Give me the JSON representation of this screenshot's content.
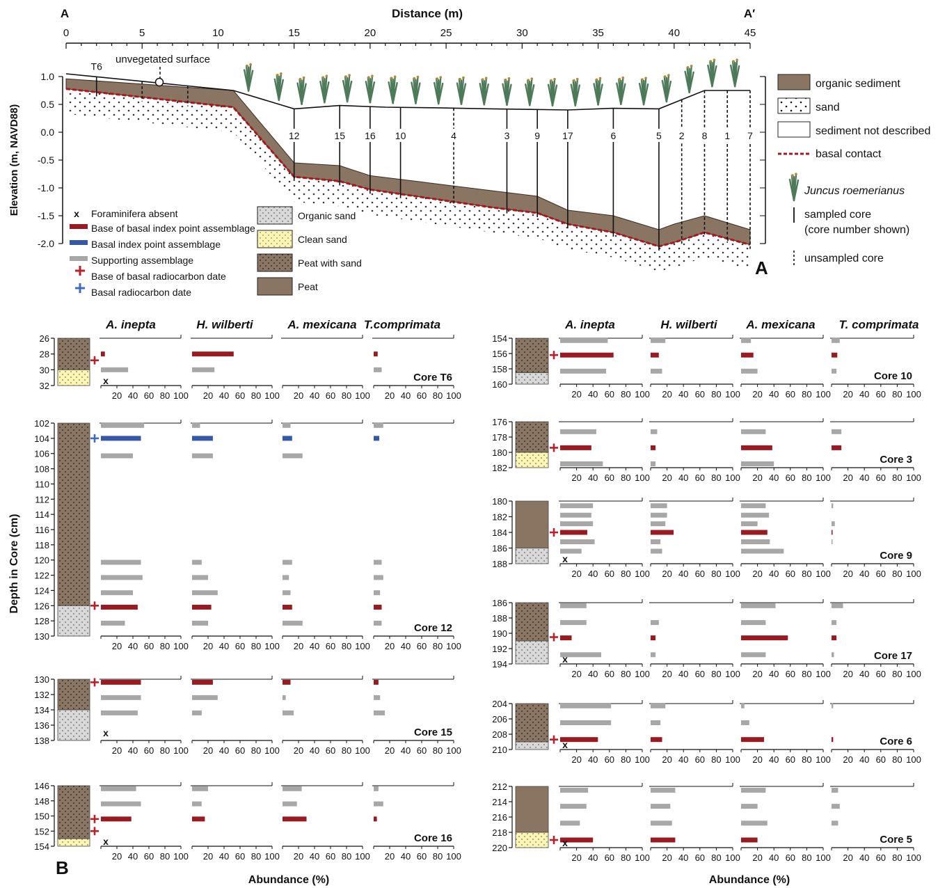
{
  "colors": {
    "peat": "#8a7563",
    "organic_sand": "#d8d8d8",
    "clean_sand": "#fbf5b4",
    "basal_red": "#9b1a22",
    "basal_blue": "#3558a8",
    "support_gray": "#a7a7a7",
    "plus_red": "#b8202a",
    "plus_blue": "#3f6cc0",
    "juncus": "#4d7a58"
  },
  "icons": [
    "juncus-plant-icon",
    "red-plus-icon",
    "blue-plus-icon",
    "x-mark-icon",
    "open-circle-icon"
  ],
  "panel_a": {
    "letter": "A",
    "end_left": "A",
    "end_right": "A′",
    "x_title": "Distance (m)",
    "y_title": "Elevation (m, NAVD88)",
    "x_ticks": [
      "0",
      "5",
      "10",
      "15",
      "20",
      "25",
      "30",
      "35",
      "40",
      "45"
    ],
    "y_ticks": [
      "1.0",
      "0.5",
      "0.0",
      "-0.5",
      "-1.0",
      "-1.5",
      "-2.0"
    ],
    "annotation": "unvegetated surface",
    "legend": {
      "organic": "organic sediment",
      "sand": "sand",
      "not_described": "sediment not described",
      "basal_contact": "basal contact",
      "juncus": "Juncus roemerianus",
      "sampled_1": "sampled core",
      "sampled_2": "(core number shown)",
      "unsampled": "unsampled core"
    },
    "surface": [
      [
        0,
        1.05
      ],
      [
        11,
        0.75
      ],
      [
        15,
        0.42
      ],
      [
        18,
        0.48
      ],
      [
        21,
        0.45
      ],
      [
        24,
        0.44
      ],
      [
        28,
        0.42
      ],
      [
        33,
        0.4
      ],
      [
        36,
        0.43
      ],
      [
        39,
        0.42
      ],
      [
        42,
        0.75
      ],
      [
        45,
        0.75
      ]
    ],
    "basal": [
      [
        0,
        0.78
      ],
      [
        11,
        0.45
      ],
      [
        15,
        -0.8
      ],
      [
        18,
        -0.88
      ],
      [
        20,
        -1.03
      ],
      [
        23,
        -1.15
      ],
      [
        28,
        -1.35
      ],
      [
        31,
        -1.45
      ],
      [
        33,
        -1.65
      ],
      [
        36,
        -1.8
      ],
      [
        39,
        -2.05
      ],
      [
        40,
        -1.98
      ],
      [
        42,
        -1.8
      ],
      [
        45,
        -2.02
      ]
    ],
    "peat_top": [
      [
        0,
        0.96
      ],
      [
        11,
        0.75
      ],
      [
        15,
        -0.55
      ],
      [
        18,
        -0.6
      ],
      [
        20,
        -0.78
      ],
      [
        23,
        -0.88
      ],
      [
        28,
        -1.05
      ],
      [
        31,
        -1.15
      ],
      [
        33,
        -1.4
      ],
      [
        36,
        -1.5
      ],
      [
        39,
        -1.75
      ],
      [
        40,
        -1.65
      ],
      [
        42,
        -1.5
      ],
      [
        45,
        -1.75
      ]
    ],
    "cores": [
      {
        "label": "T6",
        "x": 2,
        "sampled": true
      },
      {
        "label": "",
        "x": 5,
        "sampled": false
      },
      {
        "label": "",
        "x": 8,
        "sampled": false
      },
      {
        "label": "12",
        "x": 15,
        "sampled": true
      },
      {
        "label": "15",
        "x": 18,
        "sampled": true
      },
      {
        "label": "16",
        "x": 20,
        "sampled": true
      },
      {
        "label": "10",
        "x": 22,
        "sampled": true
      },
      {
        "label": "4",
        "x": 25.5,
        "sampled": false
      },
      {
        "label": "3",
        "x": 29,
        "sampled": true
      },
      {
        "label": "9",
        "x": 31,
        "sampled": true
      },
      {
        "label": "17",
        "x": 33,
        "sampled": true
      },
      {
        "label": "6",
        "x": 36,
        "sampled": true
      },
      {
        "label": "5",
        "x": 39,
        "sampled": true
      },
      {
        "label": "2",
        "x": 40.5,
        "sampled": false
      },
      {
        "label": "8",
        "x": 42,
        "sampled": false
      },
      {
        "label": "1",
        "x": 43.5,
        "sampled": false
      },
      {
        "label": "7",
        "x": 45,
        "sampled": false
      }
    ],
    "juncus_x": [
      12,
      14,
      15.5,
      17,
      18.5,
      20,
      21.5,
      23,
      24.5,
      26,
      27.5,
      29,
      30.5,
      32,
      33.5,
      35,
      36.5,
      38,
      39.5,
      41,
      42.5,
      44
    ]
  },
  "legend_mid": {
    "items": [
      {
        "key": "x",
        "label": "Foraminifera absent"
      },
      {
        "key": "bar_red",
        "label": "Base of basal index point assemblage"
      },
      {
        "key": "bar_blue",
        "label": "Basal index point assemblage"
      },
      {
        "key": "bar_gray",
        "label": "Supporting assemblage"
      },
      {
        "key": "plus_red",
        "label": "Base of basal radiocarbon date"
      },
      {
        "key": "plus_blue",
        "label": "Basal radiocarbon date"
      }
    ],
    "sed": [
      {
        "key": "organic_sand",
        "label": "Organic sand"
      },
      {
        "key": "clean_sand",
        "label": "Clean sand"
      },
      {
        "key": "peat_sand",
        "label": "Peat with sand"
      },
      {
        "key": "peat",
        "label": "Peat"
      }
    ]
  },
  "panel_b": {
    "letter": "B",
    "y_title": "Depth in Core (cm)",
    "x_title": "Abundance (%)",
    "x_ticks": [
      "20",
      "40",
      "60",
      "80",
      "100"
    ],
    "species_left": [
      "A. inepta",
      "H. wilberti",
      "A. mexicana",
      "T.comprimata"
    ],
    "species_right": [
      "A. inepta",
      "H. wilberti",
      "A. mexicana",
      "T. comprimata"
    ]
  },
  "chart_data": [
    {
      "type": "bar",
      "core": "Core T6",
      "ylim": [
        26,
        32
      ],
      "depth_ticks": [
        26,
        28,
        30,
        32
      ],
      "layers": [
        {
          "from": 26,
          "to": 30,
          "type": "peat_sand"
        },
        {
          "from": 30,
          "to": 32,
          "type": "clean_sand"
        }
      ],
      "plus": [
        {
          "depth": 28.8,
          "kind": "red"
        }
      ],
      "x_marks": [
        31.5
      ],
      "samples": [
        {
          "depth": 28,
          "kind": "red",
          "values": [
            5,
            52,
            0,
            5
          ]
        },
        {
          "depth": 30,
          "kind": "gray",
          "values": [
            34,
            28,
            0,
            10
          ]
        }
      ]
    },
    {
      "type": "bar",
      "core": "Core 12",
      "ylim": [
        102,
        130
      ],
      "depth_ticks": [
        102,
        104,
        106,
        108,
        110,
        112,
        114,
        116,
        118,
        120,
        122,
        124,
        126,
        128,
        130
      ],
      "layers": [
        {
          "from": 102,
          "to": 126,
          "type": "peat_sand"
        },
        {
          "from": 126,
          "to": 130,
          "type": "organic_sand"
        }
      ],
      "plus": [
        {
          "depth": 104,
          "kind": "blue"
        },
        {
          "depth": 126,
          "kind": "red"
        }
      ],
      "x_marks": [],
      "samples": [
        {
          "depth": 102.3,
          "kind": "gray",
          "values": [
            54,
            10,
            10,
            12
          ]
        },
        {
          "depth": 104,
          "kind": "blue",
          "values": [
            50,
            26,
            12,
            7
          ]
        },
        {
          "depth": 106.3,
          "kind": "gray",
          "values": [
            40,
            26,
            25,
            0
          ]
        },
        {
          "depth": 120.3,
          "kind": "gray",
          "values": [
            50,
            12,
            12,
            10
          ]
        },
        {
          "depth": 122.3,
          "kind": "gray",
          "values": [
            52,
            20,
            8,
            12
          ]
        },
        {
          "depth": 124.3,
          "kind": "gray",
          "values": [
            40,
            32,
            10,
            8
          ]
        },
        {
          "depth": 126.2,
          "kind": "red",
          "values": [
            46,
            24,
            12,
            10
          ]
        },
        {
          "depth": 128.3,
          "kind": "gray",
          "values": [
            30,
            20,
            25,
            10
          ]
        }
      ]
    },
    {
      "type": "bar",
      "core": "Core 15",
      "ylim": [
        130,
        138
      ],
      "depth_ticks": [
        130,
        132,
        134,
        136,
        138
      ],
      "layers": [
        {
          "from": 130,
          "to": 134,
          "type": "peat_sand"
        },
        {
          "from": 134,
          "to": 138,
          "type": "organic_sand"
        }
      ],
      "plus": [
        {
          "depth": 130.4,
          "kind": "red"
        }
      ],
      "x_marks": [
        137
      ],
      "samples": [
        {
          "depth": 130.4,
          "kind": "red",
          "values": [
            50,
            26,
            10,
            6
          ]
        },
        {
          "depth": 132.4,
          "kind": "gray",
          "values": [
            50,
            32,
            4,
            8
          ]
        },
        {
          "depth": 134.4,
          "kind": "gray",
          "values": [
            46,
            12,
            14,
            14
          ]
        }
      ]
    },
    {
      "type": "bar",
      "core": "Core 16",
      "ylim": [
        146,
        154
      ],
      "depth_ticks": [
        146,
        148,
        150,
        152,
        154
      ],
      "layers": [
        {
          "from": 146,
          "to": 153,
          "type": "peat_sand"
        },
        {
          "from": 153,
          "to": 154,
          "type": "clean_sand"
        }
      ],
      "plus": [
        {
          "depth": 150.4,
          "kind": "red"
        },
        {
          "depth": 152,
          "kind": "red"
        }
      ],
      "x_marks": [
        154
      ],
      "samples": [
        {
          "depth": 146.4,
          "kind": "gray",
          "values": [
            44,
            20,
            24,
            6
          ]
        },
        {
          "depth": 148.4,
          "kind": "gray",
          "values": [
            50,
            12,
            18,
            12
          ]
        },
        {
          "depth": 150.4,
          "kind": "red",
          "values": [
            38,
            16,
            30,
            4
          ]
        }
      ]
    },
    {
      "type": "bar",
      "core": "Core 10",
      "ylim": [
        154,
        160
      ],
      "depth_ticks": [
        154,
        156,
        158,
        160
      ],
      "layers": [
        {
          "from": 154,
          "to": 158.5,
          "type": "peat_sand"
        },
        {
          "from": 158.5,
          "to": 160,
          "type": "organic_sand"
        }
      ],
      "plus": [
        {
          "depth": 156.2,
          "kind": "red"
        }
      ],
      "x_marks": [],
      "samples": [
        {
          "depth": 154.3,
          "kind": "gray",
          "values": [
            58,
            18,
            12,
            10
          ]
        },
        {
          "depth": 156.2,
          "kind": "red",
          "values": [
            65,
            10,
            15,
            7
          ]
        },
        {
          "depth": 158.3,
          "kind": "gray",
          "values": [
            56,
            14,
            20,
            6
          ]
        }
      ]
    },
    {
      "type": "bar",
      "core": "Core 3",
      "ylim": [
        176,
        182
      ],
      "depth_ticks": [
        176,
        178,
        180,
        182
      ],
      "layers": [
        {
          "from": 176,
          "to": 180,
          "type": "peat_sand"
        },
        {
          "from": 180,
          "to": 182,
          "type": "clean_sand"
        }
      ],
      "plus": [
        {
          "depth": 179.4,
          "kind": "red"
        }
      ],
      "x_marks": [],
      "samples": [
        {
          "depth": 177.3,
          "kind": "gray",
          "values": [
            44,
            8,
            30,
            12
          ]
        },
        {
          "depth": 179.4,
          "kind": "red",
          "values": [
            38,
            6,
            38,
            12
          ]
        },
        {
          "depth": 181.5,
          "kind": "gray",
          "values": [
            52,
            6,
            40,
            0
          ]
        }
      ]
    },
    {
      "type": "bar",
      "core": "Core 9",
      "ylim": [
        180,
        188
      ],
      "depth_ticks": [
        180,
        182,
        184,
        186,
        188
      ],
      "layers": [
        {
          "from": 180,
          "to": 186,
          "type": "peat"
        },
        {
          "from": 186,
          "to": 188,
          "type": "organic_sand"
        }
      ],
      "plus": [
        {
          "depth": 184,
          "kind": "red"
        }
      ],
      "x_marks": [
        187.6
      ],
      "samples": [
        {
          "depth": 180.6,
          "kind": "gray",
          "values": [
            40,
            20,
            30,
            2
          ]
        },
        {
          "depth": 181.8,
          "kind": "gray",
          "values": [
            38,
            20,
            34,
            0
          ]
        },
        {
          "depth": 182.9,
          "kind": "gray",
          "values": [
            40,
            18,
            20,
            4
          ]
        },
        {
          "depth": 184,
          "kind": "red",
          "values": [
            33,
            28,
            32,
            1
          ]
        },
        {
          "depth": 185.2,
          "kind": "gray",
          "values": [
            42,
            12,
            35,
            1
          ]
        },
        {
          "depth": 186.4,
          "kind": "gray",
          "values": [
            26,
            14,
            52,
            0
          ]
        }
      ]
    },
    {
      "type": "bar",
      "core": "Core 17",
      "ylim": [
        186,
        194
      ],
      "depth_ticks": [
        186,
        188,
        190,
        192,
        194
      ],
      "layers": [
        {
          "from": 186,
          "to": 191,
          "type": "peat_sand"
        },
        {
          "from": 191,
          "to": 194,
          "type": "organic_sand"
        }
      ],
      "plus": [
        {
          "depth": 190.5,
          "kind": "red"
        }
      ],
      "x_marks": [
        193.6
      ],
      "samples": [
        {
          "depth": 186.4,
          "kind": "gray",
          "values": [
            32,
            0,
            42,
            14
          ]
        },
        {
          "depth": 188.6,
          "kind": "gray",
          "values": [
            32,
            10,
            30,
            6
          ]
        },
        {
          "depth": 190.6,
          "kind": "red",
          "values": [
            14,
            6,
            57,
            6
          ]
        },
        {
          "depth": 192.8,
          "kind": "gray",
          "values": [
            50,
            6,
            30,
            3
          ]
        }
      ]
    },
    {
      "type": "bar",
      "core": "Core 6",
      "ylim": [
        204,
        210
      ],
      "depth_ticks": [
        204,
        206,
        208,
        210
      ],
      "layers": [
        {
          "from": 204,
          "to": 209,
          "type": "peat_sand"
        },
        {
          "from": 209,
          "to": 210,
          "type": "organic_sand"
        }
      ],
      "plus": [
        {
          "depth": 208.7,
          "kind": "red"
        }
      ],
      "x_marks": [
        209.8
      ],
      "samples": [
        {
          "depth": 204.3,
          "kind": "gray",
          "values": [
            62,
            18,
            4,
            2
          ]
        },
        {
          "depth": 206.5,
          "kind": "gray",
          "values": [
            62,
            12,
            10,
            0
          ]
        },
        {
          "depth": 208.7,
          "kind": "red",
          "values": [
            46,
            14,
            28,
            2
          ]
        }
      ]
    },
    {
      "type": "bar",
      "core": "Core 5",
      "ylim": [
        212,
        220
      ],
      "depth_ticks": [
        212,
        214,
        216,
        218,
        220
      ],
      "layers": [
        {
          "from": 212,
          "to": 218,
          "type": "peat"
        },
        {
          "from": 218,
          "to": 220,
          "type": "clean_sand"
        }
      ],
      "plus": [
        {
          "depth": 219,
          "kind": "red"
        }
      ],
      "x_marks": [
        219.8
      ],
      "samples": [
        {
          "depth": 212.5,
          "kind": "gray",
          "values": [
            34,
            30,
            30,
            8
          ]
        },
        {
          "depth": 214.6,
          "kind": "gray",
          "values": [
            32,
            24,
            20,
            10
          ]
        },
        {
          "depth": 216.8,
          "kind": "gray",
          "values": [
            24,
            26,
            32,
            8
          ]
        },
        {
          "depth": 219,
          "kind": "red",
          "values": [
            40,
            30,
            20,
            0
          ]
        }
      ]
    }
  ]
}
